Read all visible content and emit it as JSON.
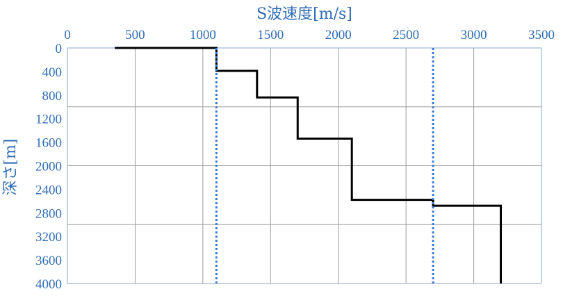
{
  "chart_data": {
    "type": "line",
    "title": "",
    "xlabel": "S波速度[m/s]",
    "ylabel": "深さ[m]",
    "xlim": [
      0,
      3500
    ],
    "ylim": [
      0,
      4000
    ],
    "y_inverted": true,
    "x_axis_position": "top",
    "x_ticks": [
      0,
      500,
      1000,
      1500,
      2000,
      2500,
      3000,
      3500
    ],
    "y_ticks": [
      0,
      400,
      800,
      1200,
      1600,
      2000,
      2400,
      2800,
      3200,
      3600,
      4000
    ],
    "x_grid_values": [
      500,
      1000,
      1500,
      2000,
      2500,
      3000,
      3500
    ],
    "y_grid_values": [
      1000,
      2000,
      3000
    ],
    "grid": true,
    "series": [
      {
        "style": "solid",
        "color": "#000000",
        "points": [
          [
            350,
            0
          ],
          [
            1100,
            0
          ],
          [
            1100,
            390
          ],
          [
            1400,
            390
          ],
          [
            1400,
            840
          ],
          [
            1700,
            840
          ],
          [
            1700,
            1540
          ],
          [
            2100,
            1540
          ],
          [
            2100,
            2580
          ],
          [
            2700,
            2580
          ],
          [
            2700,
            2680
          ],
          [
            3200,
            2680
          ],
          [
            3200,
            4000
          ]
        ]
      },
      {
        "style": "dotted",
        "color": "#3a7bd5",
        "points": [
          [
            1100,
            0
          ],
          [
            1100,
            4000
          ]
        ]
      },
      {
        "style": "dotted",
        "color": "#3a7bd5",
        "points": [
          [
            2700,
            0
          ],
          [
            2700,
            4000
          ]
        ]
      }
    ]
  }
}
